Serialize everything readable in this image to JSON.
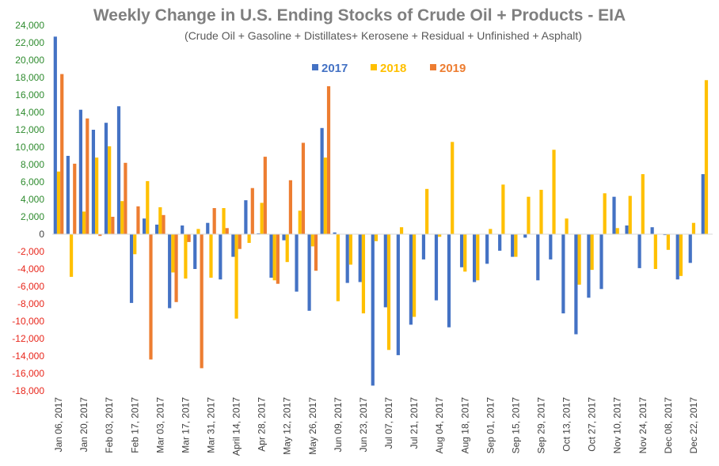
{
  "chart_data": {
    "type": "bar",
    "title": "Weekly Change in U.S. Ending Stocks of Crude Oil + Products - EIA",
    "subtitle": "(Crude Oil + Gasoline + Distillates+ Kerosene + Residual + Unfinished + Asphalt)",
    "xlabel": "",
    "ylabel": "",
    "ylim": [
      -18000,
      24000
    ],
    "y_ticks": [
      24000,
      22000,
      20000,
      18000,
      16000,
      14000,
      12000,
      10000,
      8000,
      6000,
      4000,
      2000,
      0,
      -2000,
      -4000,
      -6000,
      -8000,
      -10000,
      -12000,
      -14000,
      -16000,
      -18000
    ],
    "y_tick_labels": [
      "24,000",
      "22,000",
      "20,000",
      "18,000",
      "16,000",
      "14,000",
      "12,000",
      "10,000",
      "8,000",
      "6,000",
      "4,000",
      "2,000",
      "0",
      "-2,000",
      "-4,000",
      "-6,000",
      "-8,000",
      "-10,000",
      "-12,000",
      "-14,000",
      "-16,000",
      "-18,000"
    ],
    "positive_tick_color": "#2e8b2e",
    "negative_tick_color": "#e8261b",
    "zero_tick_color": "#404040",
    "x_tick_labels": [
      "Jan 06, 2017",
      "Jan 20, 2017",
      "Feb 03, 2017",
      "Feb 17, 2017",
      "Mar 03, 2017",
      "Mar 17, 2017",
      "Mar 31, 2017",
      "April 14, 2017",
      "Apr 28, 2017",
      "May 12, 2017",
      "May 26, 2017",
      "Jun 09, 2017",
      "Jun 23, 2017",
      "Jul 07, 2017",
      "Jul 21, 2017",
      "Aug 04, 2017",
      "Aug 18, 2017",
      "Sep 01, 2017",
      "Sep 15, 2017",
      "Sep 29, 2017",
      "Oct 13, 2017",
      "Oct 27, 2017",
      "Nov 10, 2017",
      "Nov 24, 2017",
      "Dec 08, 2017",
      "Dec 22, 2017"
    ],
    "legend_position": "top-center",
    "grid": false,
    "series": [
      {
        "name": "2017",
        "color": "#4472c4",
        "values": [
          22700,
          9000,
          14300,
          12000,
          12800,
          14700,
          -7900,
          1800,
          1100,
          -8500,
          1000,
          -4000,
          1300,
          -5200,
          -2600,
          3900,
          100,
          -5000,
          -700,
          -6600,
          -8800,
          12200,
          200,
          -5600,
          -5500,
          -17400,
          -8400,
          -13900,
          -10400,
          -2900,
          -7600,
          -10700,
          -3800,
          -5500,
          -3400,
          -1900,
          -2600,
          -400,
          -5300,
          -2900,
          -9100,
          -11500,
          -7300,
          -6300,
          4300,
          1000,
          -3900,
          800,
          -100,
          -5200,
          -3300,
          6900
        ]
      },
      {
        "name": "2018",
        "color": "#ffc000",
        "values": [
          7200,
          -4900,
          2600,
          8800,
          10100,
          3800,
          -2300,
          6100,
          3100,
          -4400,
          -5100,
          600,
          -5000,
          3000,
          -9700,
          -1000,
          3600,
          -5300,
          -3200,
          2700,
          -1400,
          8800,
          -7700,
          -3500,
          -9100,
          -800,
          -13300,
          800,
          -9500,
          5200,
          -300,
          10600,
          -4300,
          -5300,
          600,
          5700,
          -2600,
          4300,
          5100,
          9700,
          1800,
          -5800,
          -4100,
          4700,
          700,
          4400,
          6900,
          -4000,
          -1800,
          -4800,
          1300,
          17700
        ]
      },
      {
        "name": "2019",
        "color": "#ed7d31",
        "values": [
          18400,
          8100,
          13300,
          -200,
          2000,
          8200,
          3200,
          -14400,
          2200,
          -7800,
          -900,
          -15400,
          3000,
          700,
          -1700,
          5300,
          8900,
          -5700,
          6200,
          10500,
          -4200,
          17000
        ]
      }
    ]
  }
}
